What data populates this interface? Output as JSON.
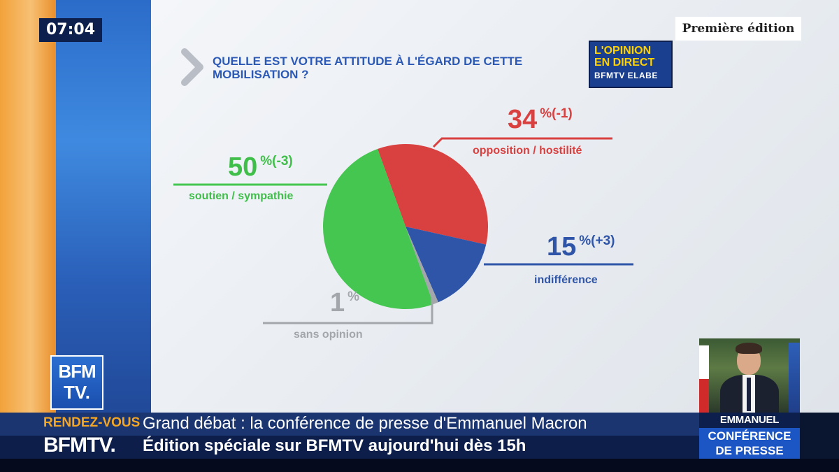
{
  "clock": "07:04",
  "edition_badge": "Première édition",
  "opinion_logo": {
    "line1": "L'OPINION",
    "line2": "EN DIRECT",
    "line3": "BFMTV ELABE"
  },
  "question": "QUELLE EST VOTRE ATTITUDE À L'ÉGARD DE CETTE MOBILISATION ?",
  "colors": {
    "soutien": "#45c650",
    "opposition": "#d94040",
    "indifference": "#2f55a8",
    "sans_opinion": "#a3a6ab"
  },
  "chart_data": {
    "type": "pie",
    "title": "QUELLE EST VOTRE ATTITUDE À L'ÉGARD DE CETTE MOBILISATION ?",
    "slices": [
      {
        "label": "opposition / hostilité",
        "value": 34,
        "value_text": "34",
        "change": "%(-1)"
      },
      {
        "label": "indifférence",
        "value": 15,
        "value_text": "15",
        "change": "%(+3)"
      },
      {
        "label": "sans opinion",
        "value": 1,
        "value_text": "1",
        "change": "%"
      },
      {
        "label": "soutien / sympathie",
        "value": 50,
        "value_text": "50",
        "change": "%(-3)"
      }
    ]
  },
  "bfm_logo": {
    "line1": "BFM",
    "line2": "TV."
  },
  "inset": {
    "name": "EMMANUEL MACRON",
    "subtitle_line1": "CONFÉRENCE",
    "subtitle_line2": "DE PRESSE"
  },
  "ticker": {
    "label_top": "RENDEZ-VOUS",
    "label_bottom": "BFMTV.",
    "headline1": "Grand débat : la conférence de presse d'Emmanuel Macron",
    "headline2": "Édition spéciale sur BFMTV aujourd'hui dès 15h"
  }
}
